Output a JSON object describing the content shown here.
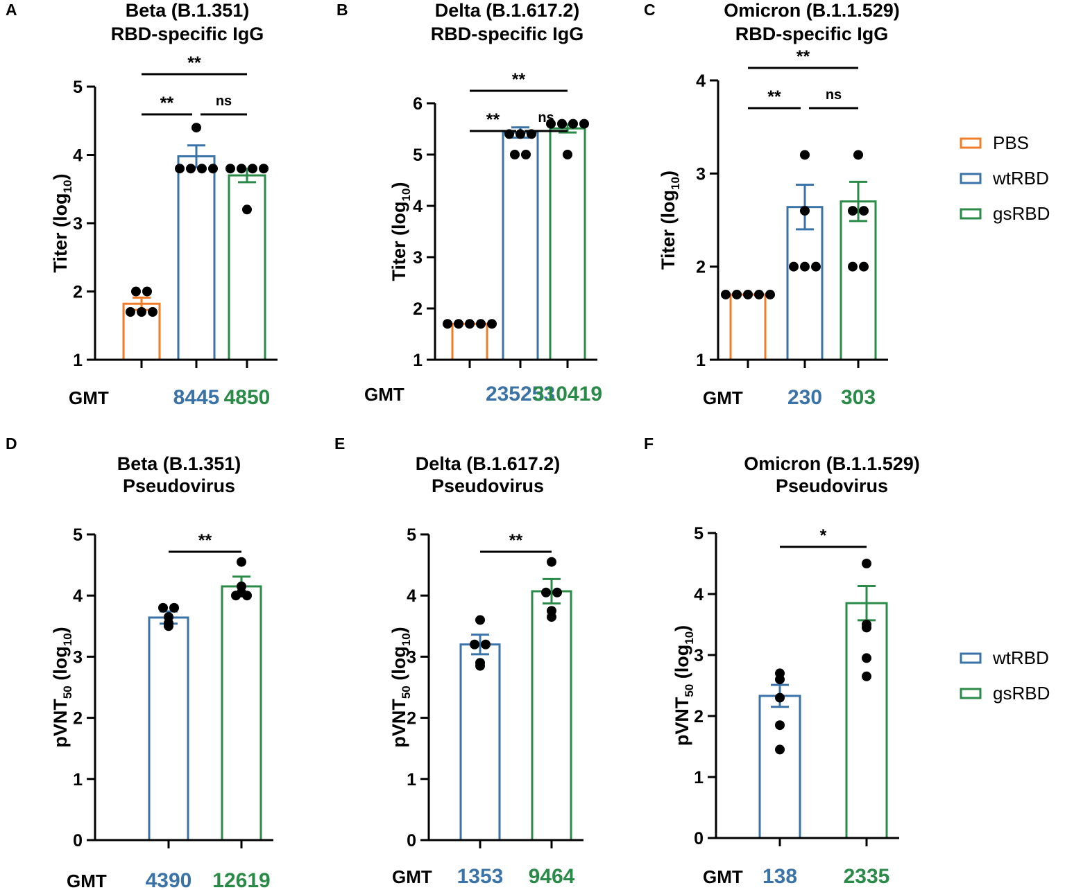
{
  "colors": {
    "PBS": "#f07c2a",
    "wtRBD": "#3a73a8",
    "gsRBD": "#2a8a47",
    "axis": "#000000"
  },
  "legends": [
    {
      "items": [
        "PBS",
        "wtRBD",
        "gsRBD"
      ]
    },
    {
      "items": [
        "wtRBD",
        "gsRBD"
      ]
    }
  ],
  "gmt_label": "GMT",
  "chart_data": [
    {
      "panel": "A",
      "type": "bar",
      "title": [
        "Beta (B.1.351)",
        "RBD-specific IgG"
      ],
      "ylabel": "Titer (log10)",
      "ylim": [
        1,
        5
      ],
      "yticks": [
        1,
        2,
        3,
        4,
        5
      ],
      "groups": [
        {
          "name": "PBS",
          "mean": 1.82,
          "sem": 0.09,
          "points": [
            2.0,
            2.0,
            1.7,
            1.7,
            1.7
          ]
        },
        {
          "name": "wtRBD",
          "mean": 3.98,
          "sem": 0.16,
          "points": [
            4.4,
            3.8,
            3.8,
            3.8,
            3.8
          ]
        },
        {
          "name": "gsRBD",
          "mean": 3.7,
          "sem": 0.1,
          "points": [
            3.8,
            3.8,
            3.8,
            3.8,
            3.2
          ]
        }
      ],
      "gmt": [
        "",
        "8445",
        "4850"
      ],
      "significance": [
        {
          "from": 0,
          "to": 1,
          "label": "**",
          "level": 0
        },
        {
          "from": 1,
          "to": 2,
          "label": "ns",
          "level": 0
        },
        {
          "from": 0,
          "to": 2,
          "label": "**",
          "level": 1
        }
      ]
    },
    {
      "panel": "B",
      "type": "bar",
      "title": [
        "Delta (B.1.617.2)",
        "RBD-specific IgG"
      ],
      "ylabel": "Titer (log10)",
      "ylim": [
        1,
        6
      ],
      "yticks": [
        1,
        2,
        3,
        4,
        5,
        6
      ],
      "groups": [
        {
          "name": "PBS",
          "mean": 1.7,
          "sem": 0.0,
          "points": [
            1.7,
            1.7,
            1.7,
            1.7,
            1.7
          ]
        },
        {
          "name": "wtRBD",
          "mean": 5.43,
          "sem": 0.1,
          "points": [
            5.4,
            5.4,
            5.4,
            5.0,
            5.0
          ]
        },
        {
          "name": "gsRBD",
          "mean": 5.51,
          "sem": 0.08,
          "points": [
            5.6,
            5.6,
            5.6,
            5.6,
            5.0
          ]
        }
      ],
      "gmt": [
        "",
        "235253",
        "310419"
      ],
      "significance": [
        {
          "from": 0,
          "to": 1,
          "label": "**",
          "level": 0
        },
        {
          "from": 1,
          "to": 2,
          "label": "ns",
          "level": 0
        },
        {
          "from": 0,
          "to": 2,
          "label": "**",
          "level": 1
        }
      ]
    },
    {
      "panel": "C",
      "type": "bar",
      "title": [
        "Omicron (B.1.1.529)",
        "RBD-specific IgG"
      ],
      "ylabel": "Titer (log10)",
      "ylim": [
        1,
        4
      ],
      "yticks": [
        1,
        2,
        3,
        4
      ],
      "groups": [
        {
          "name": "PBS",
          "mean": 1.7,
          "sem": 0.0,
          "points": [
            1.7,
            1.7,
            1.7,
            1.7,
            1.7
          ]
        },
        {
          "name": "wtRBD",
          "mean": 2.64,
          "sem": 0.24,
          "points": [
            3.2,
            2.6,
            2.0,
            2.0,
            2.0
          ]
        },
        {
          "name": "gsRBD",
          "mean": 2.7,
          "sem": 0.21,
          "points": [
            3.2,
            2.6,
            2.6,
            2.0,
            2.0
          ]
        }
      ],
      "gmt": [
        "",
        "230",
        "303"
      ],
      "significance": [
        {
          "from": 0,
          "to": 1,
          "label": "**",
          "level": 0
        },
        {
          "from": 1,
          "to": 2,
          "label": "ns",
          "level": 0
        },
        {
          "from": 0,
          "to": 2,
          "label": "**",
          "level": 1
        }
      ]
    },
    {
      "panel": "D",
      "type": "bar",
      "title": [
        "Beta (B.1.351)",
        "Pseudovirus"
      ],
      "ylabel": "pVNT50 (log10)",
      "ylim": [
        0,
        5
      ],
      "yticks": [
        0,
        1,
        2,
        3,
        4,
        5
      ],
      "groups": [
        {
          "name": "wtRBD",
          "mean": 3.64,
          "sem": 0.1,
          "points": [
            3.8,
            3.65,
            3.8,
            3.5,
            3.55
          ]
        },
        {
          "name": "gsRBD",
          "mean": 4.15,
          "sem": 0.16,
          "points": [
            4.55,
            4.0,
            4.15,
            4.0,
            4.05
          ]
        }
      ],
      "gmt": [
        "4390",
        "12619"
      ],
      "significance": [
        {
          "from": 0,
          "to": 1,
          "label": "**",
          "level": 0
        }
      ]
    },
    {
      "panel": "E",
      "type": "bar",
      "title": [
        "Delta (B.1.617.2)",
        "Pseudovirus"
      ],
      "ylabel": "pVNT50 (log10)",
      "ylim": [
        0,
        5
      ],
      "yticks": [
        0,
        1,
        2,
        3,
        4,
        5
      ],
      "groups": [
        {
          "name": "wtRBD",
          "mean": 3.2,
          "sem": 0.16,
          "points": [
            3.6,
            3.2,
            3.2,
            2.85,
            2.9
          ]
        },
        {
          "name": "gsRBD",
          "mean": 4.07,
          "sem": 0.2,
          "points": [
            4.55,
            4.05,
            4.05,
            3.65,
            3.75
          ]
        }
      ],
      "gmt": [
        "1353",
        "9464"
      ],
      "significance": [
        {
          "from": 0,
          "to": 1,
          "label": "**",
          "level": 0
        }
      ]
    },
    {
      "panel": "F",
      "type": "bar",
      "title": [
        "Omicron (B.1.1.529)",
        "Pseudovirus"
      ],
      "ylabel": "pVNT50 (log10)",
      "ylim": [
        0,
        5
      ],
      "yticks": [
        0,
        1,
        2,
        3,
        4,
        5
      ],
      "groups": [
        {
          "name": "wtRBD",
          "mean": 2.33,
          "sem": 0.18,
          "points": [
            2.7,
            2.6,
            2.3,
            1.85,
            1.45
          ]
        },
        {
          "name": "gsRBD",
          "mean": 3.85,
          "sem": 0.28,
          "points": [
            4.5,
            3.5,
            3.45,
            2.95,
            2.65
          ]
        }
      ],
      "gmt": [
        "138",
        "2335"
      ],
      "significance": [
        {
          "from": 0,
          "to": 1,
          "label": "*",
          "level": 0
        }
      ]
    }
  ]
}
